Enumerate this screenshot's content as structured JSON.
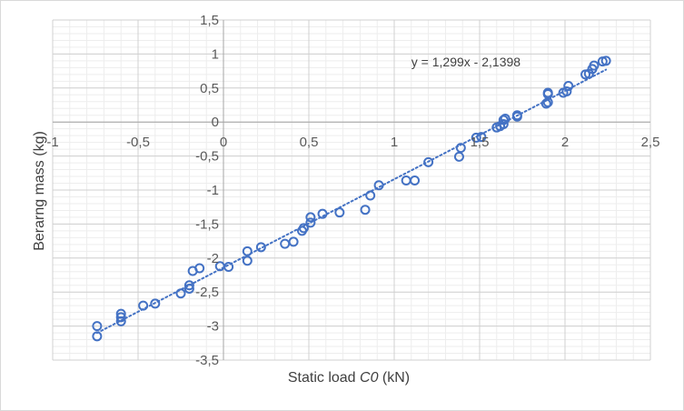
{
  "chart_data": {
    "type": "scatter",
    "title": "",
    "xlabel_prefix": "Static load ",
    "xlabel_var": "C0",
    "xlabel_suffix": " (kN)",
    "ylabel": "Berarng mass (kg)",
    "xlim": [
      -1,
      2.5
    ],
    "ylim": [
      -3.5,
      1.5
    ],
    "x_ticks": [
      "-1",
      "-0,5",
      "0",
      "0,5",
      "1",
      "1,5",
      "2",
      "2,5"
    ],
    "x_tick_values": [
      -1,
      -0.5,
      0,
      0.5,
      1,
      1.5,
      2,
      2.5
    ],
    "y_ticks": [
      "1,5",
      "1",
      "0,5",
      "0",
      "-0,5",
      "-1",
      "-1,5",
      "-2",
      "-2,5",
      "-3",
      "-3,5"
    ],
    "y_tick_values": [
      1.5,
      1,
      0.5,
      0,
      -0.5,
      -1,
      -1.5,
      -2,
      -2.5,
      -3,
      -3.5
    ],
    "grid": true,
    "marker_color": "#4472c4",
    "trendline": {
      "slope": 1.299,
      "intercept": -2.1398,
      "x_range": [
        -0.74,
        2.24
      ],
      "style": "dotted",
      "label": "y = 1,299x - 2,1398"
    },
    "points": [
      {
        "x": -0.74,
        "y": -3.0
      },
      {
        "x": -0.74,
        "y": -3.15
      },
      {
        "x": -0.6,
        "y": -2.82
      },
      {
        "x": -0.6,
        "y": -2.87
      },
      {
        "x": -0.6,
        "y": -2.93
      },
      {
        "x": -0.47,
        "y": -2.7
      },
      {
        "x": -0.4,
        "y": -2.67
      },
      {
        "x": -0.25,
        "y": -2.52
      },
      {
        "x": -0.2,
        "y": -2.4
      },
      {
        "x": -0.2,
        "y": -2.45
      },
      {
        "x": -0.18,
        "y": -2.19
      },
      {
        "x": -0.14,
        "y": -2.15
      },
      {
        "x": -0.02,
        "y": -2.12
      },
      {
        "x": 0.03,
        "y": -2.13
      },
      {
        "x": 0.14,
        "y": -1.9
      },
      {
        "x": 0.14,
        "y": -2.04
      },
      {
        "x": 0.22,
        "y": -1.84
      },
      {
        "x": 0.36,
        "y": -1.79
      },
      {
        "x": 0.41,
        "y": -1.76
      },
      {
        "x": 0.46,
        "y": -1.6
      },
      {
        "x": 0.47,
        "y": -1.56
      },
      {
        "x": 0.51,
        "y": -1.4
      },
      {
        "x": 0.51,
        "y": -1.48
      },
      {
        "x": 0.58,
        "y": -1.35
      },
      {
        "x": 0.68,
        "y": -1.33
      },
      {
        "x": 0.83,
        "y": -1.29
      },
      {
        "x": 0.86,
        "y": -1.08
      },
      {
        "x": 0.91,
        "y": -0.93
      },
      {
        "x": 1.07,
        "y": -0.86
      },
      {
        "x": 1.12,
        "y": -0.86
      },
      {
        "x": 1.2,
        "y": -0.59
      },
      {
        "x": 1.38,
        "y": -0.51
      },
      {
        "x": 1.39,
        "y": -0.38
      },
      {
        "x": 1.48,
        "y": -0.23
      },
      {
        "x": 1.51,
        "y": -0.22
      },
      {
        "x": 1.6,
        "y": -0.08
      },
      {
        "x": 1.62,
        "y": -0.06
      },
      {
        "x": 1.64,
        "y": -0.03
      },
      {
        "x": 1.64,
        "y": 0.03
      },
      {
        "x": 1.65,
        "y": 0.05
      },
      {
        "x": 1.72,
        "y": 0.08
      },
      {
        "x": 1.72,
        "y": 0.1
      },
      {
        "x": 1.89,
        "y": 0.27
      },
      {
        "x": 1.9,
        "y": 0.29
      },
      {
        "x": 1.9,
        "y": 0.41
      },
      {
        "x": 1.9,
        "y": 0.43
      },
      {
        "x": 1.99,
        "y": 0.43
      },
      {
        "x": 2.01,
        "y": 0.45
      },
      {
        "x": 2.02,
        "y": 0.53
      },
      {
        "x": 2.12,
        "y": 0.7
      },
      {
        "x": 2.14,
        "y": 0.71
      },
      {
        "x": 2.16,
        "y": 0.78
      },
      {
        "x": 2.17,
        "y": 0.83
      },
      {
        "x": 2.22,
        "y": 0.89
      },
      {
        "x": 2.24,
        "y": 0.9
      }
    ]
  }
}
